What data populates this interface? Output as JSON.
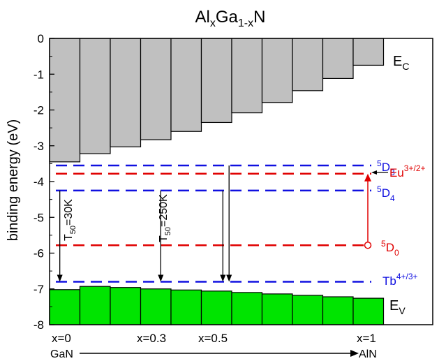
{
  "chart_data": {
    "type": "bar",
    "title": {
      "main": "Al",
      "sub1": "x",
      "mid": "Ga",
      "sub2": "1-x",
      "end": "N"
    },
    "ylabel": "binding energy (eV)",
    "ylim": [
      -8,
      0
    ],
    "yticks": [
      0,
      -1,
      -2,
      -3,
      -4,
      -5,
      -6,
      -7,
      -8
    ],
    "x_positions": [
      0,
      0.1,
      0.2,
      0.3,
      0.4,
      0.5,
      0.6,
      0.7,
      0.8,
      0.9,
      1.0
    ],
    "conduction_band": [
      -3.45,
      -3.22,
      -3.03,
      -2.83,
      -2.6,
      -2.35,
      -2.08,
      -1.79,
      -1.46,
      -1.12,
      -0.75
    ],
    "valence_band": [
      -7.02,
      -6.93,
      -6.96,
      -7.0,
      -7.03,
      -7.06,
      -7.1,
      -7.14,
      -7.18,
      -7.22,
      -7.26
    ],
    "band_labels": {
      "ec": {
        "main": "E",
        "sub": "C"
      },
      "ev": {
        "main": "E",
        "sub": "V"
      }
    },
    "levels": [
      {
        "y": -3.55,
        "color": "#1010e0",
        "label": {
          "sup": "5",
          "main": "D",
          "sub": "3"
        }
      },
      {
        "y": -3.78,
        "color": "#e00000",
        "label": {
          "main": "Eu",
          "sup": "3+/2+"
        }
      },
      {
        "y": -4.25,
        "color": "#1010e0",
        "label": {
          "sup": "5",
          "main": "D",
          "sub": "4"
        }
      },
      {
        "y": -5.78,
        "color": "#e00000",
        "label": {
          "sup": "5",
          "main": "D",
          "sub": "0"
        }
      },
      {
        "y": -6.8,
        "color": "#1010e0",
        "label": {
          "main": "Tb",
          "sup": "4+/3+"
        }
      }
    ],
    "transitions": [
      {
        "x": 0.015,
        "from": -4.25,
        "to": -6.8,
        "label": {
          "main": "T",
          "sub": "50",
          "end": "=30K"
        }
      },
      {
        "x": 0.34,
        "from": -4.25,
        "to": -6.8,
        "label": {
          "main": "T",
          "sub": "50",
          "end": "=250K"
        }
      },
      {
        "x": 0.54,
        "from": -4.25,
        "to": -6.8
      },
      {
        "x": 0.56,
        "from": -3.55,
        "to": -6.8
      }
    ],
    "excitation_arrow": {
      "x": 1.06,
      "from": -5.78,
      "to": -3.78,
      "color": "#e00000"
    },
    "x_labels": [
      {
        "x": 0,
        "text": "x=0"
      },
      {
        "x": 0.3,
        "text": "x=0.3"
      },
      {
        "x": 0.5,
        "text": "x=0.5"
      },
      {
        "x": 1.0,
        "text": "x=1"
      }
    ],
    "composition_axis": {
      "left": "GaN",
      "right": "AlN"
    }
  },
  "colors": {
    "conduction_fill": "#c0c0c0",
    "valence_fill": "#00e400",
    "blue": "#1010e0",
    "red": "#e00000"
  }
}
